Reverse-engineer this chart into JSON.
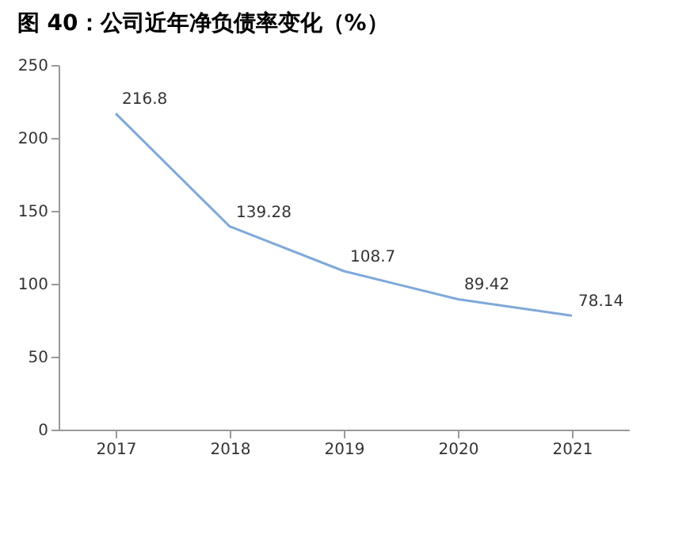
{
  "chart_data": {
    "type": "line",
    "title": "图 40：公司近年净负债率变化（%）",
    "categories": [
      "2017",
      "2018",
      "2019",
      "2020",
      "2021"
    ],
    "series": [
      {
        "color": "#7fa9d9",
        "values": [
          216.8,
          139.28,
          108.7,
          89.42,
          78.14
        ]
      }
    ],
    "ylim": [
      0,
      250
    ],
    "yticks": [
      0,
      50,
      100,
      150,
      200,
      250
    ],
    "data_labels": true,
    "grid": false,
    "marker": "none",
    "line_style": "solid"
  }
}
